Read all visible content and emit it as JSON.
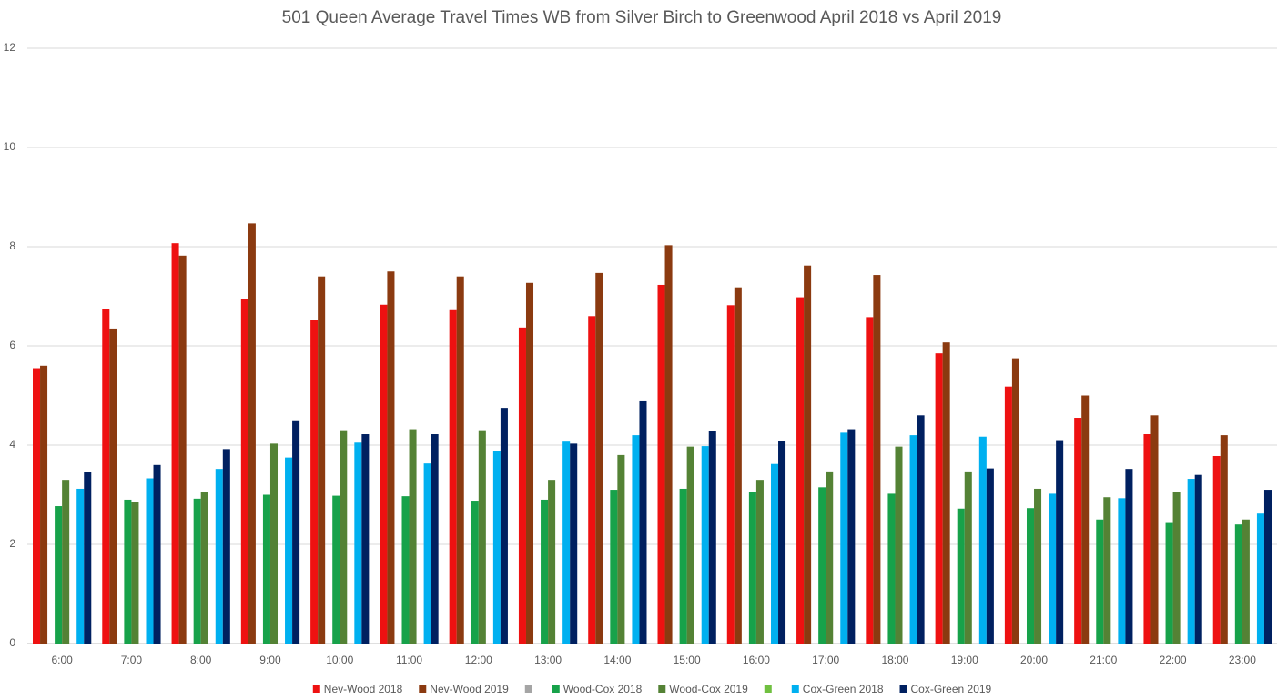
{
  "chart_data": {
    "type": "bar",
    "title": "501 Queen Average Travel Times  WB from Silver Birch to Greenwood April 2018 vs April 2019",
    "categories": [
      "6:00",
      "7:00",
      "8:00",
      "9:00",
      "10:00",
      "11:00",
      "12:00",
      "13:00",
      "14:00",
      "15:00",
      "16:00",
      "17:00",
      "18:00",
      "19:00",
      "20:00",
      "21:00",
      "22:00",
      "23:00"
    ],
    "series": [
      {
        "name": "Nev-Wood 2018",
        "color": "#ee1111",
        "values": [
          5.55,
          6.75,
          8.07,
          6.95,
          6.53,
          6.83,
          6.72,
          6.37,
          6.6,
          7.23,
          6.82,
          6.98,
          6.58,
          5.85,
          5.18,
          4.55,
          4.22,
          3.78
        ]
      },
      {
        "name": "Nev-Wood 2019",
        "color": "#8b3a10",
        "values": [
          5.6,
          6.35,
          7.82,
          8.47,
          7.4,
          7.5,
          7.4,
          7.27,
          7.47,
          8.03,
          7.18,
          7.62,
          7.43,
          6.07,
          5.75,
          5.0,
          4.6,
          4.2
        ]
      },
      {
        "color": "#a5a5a5",
        "values": [
          null,
          null,
          null,
          null,
          null,
          null,
          null,
          null,
          null,
          null,
          null,
          null,
          null,
          null,
          null,
          null,
          null,
          null
        ]
      },
      {
        "name": "Wood-Cox 2018",
        "color": "#17a24a",
        "values": [
          2.77,
          2.9,
          2.92,
          3.0,
          2.98,
          2.97,
          2.88,
          2.9,
          3.1,
          3.12,
          3.05,
          3.15,
          3.02,
          2.72,
          2.73,
          2.5,
          2.43,
          2.4
        ]
      },
      {
        "name": "Wood-Cox 2019",
        "color": "#548235",
        "values": [
          3.3,
          2.85,
          3.05,
          4.03,
          4.3,
          4.32,
          4.3,
          3.3,
          3.8,
          3.97,
          3.3,
          3.47,
          3.97,
          3.47,
          3.12,
          2.95,
          3.05,
          2.5
        ]
      },
      {
        "color": "#70c040",
        "values": [
          null,
          null,
          null,
          null,
          null,
          null,
          null,
          null,
          null,
          null,
          null,
          null,
          null,
          null,
          null,
          null,
          null,
          null
        ]
      },
      {
        "name": "Cox-Green 2018",
        "color": "#00b0f0",
        "values": [
          3.12,
          3.33,
          3.52,
          3.75,
          4.05,
          3.63,
          3.88,
          4.07,
          4.2,
          3.98,
          3.62,
          4.25,
          4.2,
          4.17,
          3.02,
          2.93,
          3.32,
          2.62
        ]
      },
      {
        "name": "Cox-Green 2019",
        "color": "#002060",
        "values": [
          3.45,
          3.6,
          3.92,
          4.5,
          4.22,
          4.22,
          4.75,
          4.03,
          4.9,
          4.28,
          4.08,
          4.32,
          4.6,
          3.53,
          4.1,
          3.52,
          3.4,
          3.1
        ]
      }
    ],
    "ylim": [
      0,
      12
    ],
    "yticks": [
      0,
      2,
      4,
      6,
      8,
      10,
      12
    ],
    "grid": true,
    "legend": "bottom"
  }
}
